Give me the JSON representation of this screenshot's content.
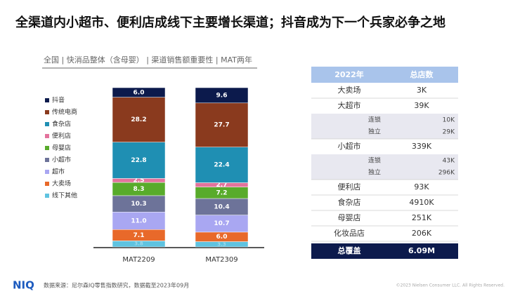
{
  "title": "全渠道内小超市、便利店成线下主要增长渠道；抖音成为下一个兵家必争之地",
  "chart_data": {
    "type": "stacked_bar",
    "subtitle": "全国 | 快消品整体（含母婴） | 渠道销售额重要性 | MAT两年",
    "categories": [
      "MAT2209",
      "MAT2309"
    ],
    "ylim": [
      0,
      100
    ],
    "series": [
      {
        "name": "线下其他",
        "color": "#5fc3e0",
        "values": [
          3.8,
          3.3
        ],
        "value_labels": [
          "3.8",
          "3.3"
        ]
      },
      {
        "name": "大卖场",
        "color": "#e8692a",
        "values": [
          7.1,
          6
        ],
        "value_labels": [
          "7.1",
          "6.0"
        ]
      },
      {
        "name": "超市",
        "color": "#a9a7f2",
        "values": [
          11,
          10.7
        ],
        "value_labels": [
          "11.0",
          "10.7"
        ]
      },
      {
        "name": "小超市",
        "color": "#6d7399",
        "values": [
          10.3,
          10.4
        ],
        "value_labels": [
          "10.3",
          "10.4"
        ]
      },
      {
        "name": "母婴店",
        "color": "#58ab2b",
        "values": [
          8.3,
          7.2
        ],
        "value_labels": [
          "8.3",
          "7.2"
        ]
      },
      {
        "name": "便利店",
        "color": "#e3739c",
        "values": [
          2.5,
          2.7
        ],
        "value_labels": [
          "2.5",
          "2.7"
        ]
      },
      {
        "name": "食杂店",
        "color": "#1f8fb3",
        "values": [
          22.8,
          22.4
        ],
        "value_labels": [
          "22.8",
          "22.4"
        ]
      },
      {
        "name": "传统电商",
        "color": "#8a3a1e",
        "values": [
          28.2,
          27.7
        ],
        "value_labels": [
          "28.2",
          "27.7"
        ]
      },
      {
        "name": "抖音",
        "color": "#0c1a4c",
        "values": [
          6,
          9.6
        ],
        "value_labels": [
          "6.0",
          "9.6"
        ]
      }
    ]
  },
  "table": {
    "header": [
      "2022年",
      "总店数"
    ],
    "rows": [
      {
        "label": "大卖场",
        "value": "3K"
      },
      {
        "label": "大超市",
        "value": "39K",
        "sub": [
          {
            "label": "连锁",
            "value": "10K"
          },
          {
            "label": "独立",
            "value": "29K"
          }
        ]
      },
      {
        "label": "小超市",
        "value": "339K",
        "sub": [
          {
            "label": "连锁",
            "value": "43K"
          },
          {
            "label": "独立",
            "value": "296K"
          }
        ]
      },
      {
        "label": "便利店",
        "value": "93K"
      },
      {
        "label": "食杂店",
        "value": "4910K"
      },
      {
        "label": "母婴店",
        "value": "251K"
      },
      {
        "label": "化妆品店",
        "value": "206K"
      }
    ],
    "total": {
      "label": "总覆盖",
      "value": "6.09M"
    }
  },
  "footer": {
    "logo": "NIQ",
    "source": "数据来源：尼尔森IQ零售指数研究，数据截至2023年09月",
    "copyright": "©2023 Nielsen Consumer LLC. All Rights Reserved."
  }
}
